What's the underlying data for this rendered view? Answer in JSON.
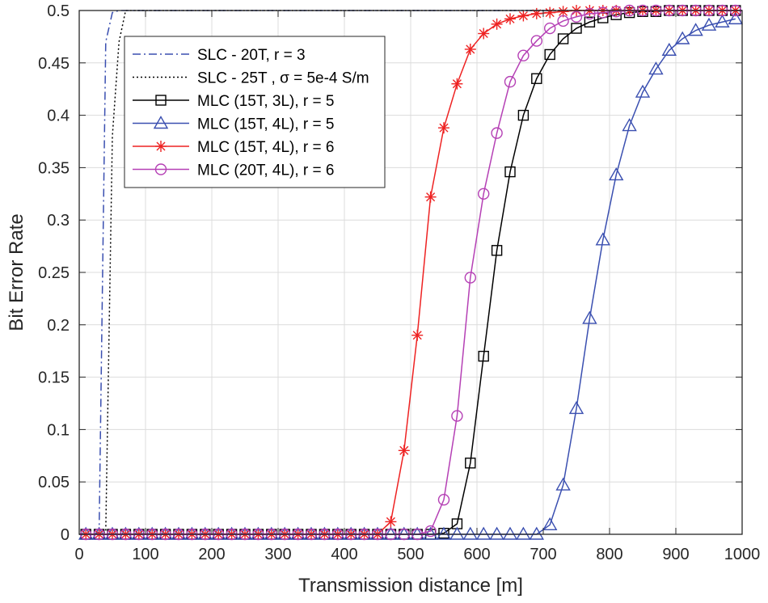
{
  "chart_data": {
    "type": "line",
    "title": "",
    "xlabel": "Transmission  distance [m]",
    "ylabel": "Bit Error Rate",
    "xlim": [
      0,
      1000
    ],
    "ylim": [
      0,
      0.5
    ],
    "xticks": [
      0,
      100,
      200,
      300,
      400,
      500,
      600,
      700,
      800,
      900,
      1000
    ],
    "xtick_labels": [
      "0",
      "100",
      "200",
      "300",
      "400",
      "500",
      "600",
      "700",
      "800",
      "900",
      "1000"
    ],
    "yticks": [
      0,
      0.05,
      0.1,
      0.15,
      0.2,
      0.25,
      0.3,
      0.35,
      0.4,
      0.45,
      0.5
    ],
    "ytick_labels": [
      "0",
      "0.05",
      "0.1",
      "0.15",
      "0.2",
      "0.25",
      "0.3",
      "0.35",
      "0.4",
      "0.45",
      "0.5"
    ],
    "grid": true,
    "legend_position": "top-left",
    "series": [
      {
        "name": "SLC - 20T, r = 3",
        "legend_text": "SLC - 20T, r = 3",
        "color": "#3a4fb0",
        "line": "dashdot",
        "marker": "none",
        "x": [
          0,
          10,
          20,
          30,
          40,
          50,
          60,
          70,
          80,
          100,
          1000
        ],
        "y": [
          0,
          0,
          0,
          0.002,
          0.47,
          0.498,
          0.5,
          0.5,
          0.5,
          0.5,
          0.5
        ]
      },
      {
        "name": "SLC - 25T , σ = 5e-4 S/m",
        "legend_text": "SLC - 25T , σ = 5e-4 S/m",
        "color": "#000000",
        "line": "dotted",
        "marker": "none",
        "x": [
          0,
          10,
          20,
          30,
          40,
          50,
          60,
          70,
          80,
          100,
          1000
        ],
        "y": [
          0,
          0,
          0,
          0.001,
          0.002,
          0.38,
          0.47,
          0.5,
          0.5,
          0.5,
          0.5
        ]
      },
      {
        "name": "MLC (15T, 3L), r = 5",
        "legend_text": "MLC (15T, 3L), r = 5",
        "color": "#000000",
        "line": "solid",
        "marker": "square",
        "x": [
          10,
          30,
          50,
          70,
          90,
          110,
          130,
          150,
          170,
          190,
          210,
          230,
          250,
          270,
          290,
          310,
          330,
          350,
          370,
          390,
          410,
          430,
          450,
          470,
          490,
          510,
          530,
          550,
          570,
          590,
          610,
          630,
          650,
          670,
          690,
          710,
          730,
          750,
          770,
          790,
          810,
          830,
          850,
          870,
          890,
          910,
          930,
          950,
          970,
          990
        ],
        "y": [
          0,
          0,
          0,
          0,
          0,
          0,
          0,
          0,
          0,
          0,
          0,
          0,
          0,
          0,
          0,
          0,
          0,
          0,
          0,
          0,
          0,
          0,
          0,
          0,
          0,
          0,
          0,
          0.001,
          0.01,
          0.068,
          0.17,
          0.271,
          0.346,
          0.4,
          0.435,
          0.458,
          0.473,
          0.483,
          0.489,
          0.493,
          0.496,
          0.498,
          0.499,
          0.499,
          0.5,
          0.5,
          0.5,
          0.5,
          0.5,
          0.5
        ]
      },
      {
        "name": "MLC (15T, 4L), r = 5",
        "legend_text": "MLC (15T, 4L), r = 5",
        "color": "#3a4fb0",
        "line": "solid",
        "marker": "triangle",
        "x": [
          10,
          30,
          50,
          70,
          90,
          110,
          130,
          150,
          170,
          190,
          210,
          230,
          250,
          270,
          290,
          310,
          330,
          350,
          370,
          390,
          410,
          430,
          450,
          470,
          490,
          510,
          530,
          550,
          570,
          590,
          610,
          630,
          650,
          670,
          690,
          710,
          730,
          750,
          770,
          790,
          810,
          830,
          850,
          870,
          890,
          910,
          930,
          950,
          970,
          990
        ],
        "y": [
          0,
          0,
          0,
          0,
          0,
          0,
          0,
          0,
          0,
          0,
          0,
          0,
          0,
          0,
          0,
          0,
          0,
          0,
          0,
          0,
          0,
          0,
          0,
          0,
          0,
          0,
          0,
          0,
          0,
          0,
          0,
          0,
          0,
          0,
          0,
          0.009,
          0.047,
          0.12,
          0.206,
          0.281,
          0.343,
          0.39,
          0.422,
          0.444,
          0.462,
          0.473,
          0.481,
          0.486,
          0.489,
          0.492
        ]
      },
      {
        "name": "MLC (15T, 4L), r = 6",
        "legend_text": "MLC (15T, 4L), r = 6",
        "color": "#ee2222",
        "line": "solid",
        "marker": "asterisk",
        "x": [
          10,
          30,
          50,
          70,
          90,
          110,
          130,
          150,
          170,
          190,
          210,
          230,
          250,
          270,
          290,
          310,
          330,
          350,
          370,
          390,
          410,
          430,
          450,
          470,
          490,
          510,
          530,
          550,
          570,
          590,
          610,
          630,
          650,
          670,
          690,
          710,
          730,
          750,
          770,
          790,
          810,
          830,
          850,
          870,
          890,
          910,
          930,
          950,
          970,
          990
        ],
        "y": [
          0,
          0,
          0,
          0,
          0,
          0,
          0,
          0,
          0,
          0,
          0,
          0,
          0,
          0,
          0,
          0,
          0,
          0,
          0,
          0,
          0,
          0,
          0,
          0.012,
          0.08,
          0.19,
          0.322,
          0.388,
          0.43,
          0.463,
          0.478,
          0.487,
          0.492,
          0.495,
          0.497,
          0.498,
          0.499,
          0.5,
          0.5,
          0.5,
          0.5,
          0.5,
          0.5,
          0.5,
          0.5,
          0.5,
          0.5,
          0.5,
          0.5,
          0.5
        ]
      },
      {
        "name": "MLC (20T, 4L), r = 6",
        "legend_text": "MLC (20T, 4L), r = 6",
        "color": "#b540b5",
        "line": "solid",
        "marker": "circle",
        "x": [
          10,
          30,
          50,
          70,
          90,
          110,
          130,
          150,
          170,
          190,
          210,
          230,
          250,
          270,
          290,
          310,
          330,
          350,
          370,
          390,
          410,
          430,
          450,
          470,
          490,
          510,
          530,
          550,
          570,
          590,
          610,
          630,
          650,
          670,
          690,
          710,
          730,
          750,
          770,
          790,
          810,
          830,
          850,
          870,
          890,
          910,
          930,
          950,
          970,
          990
        ],
        "y": [
          0,
          0,
          0,
          0,
          0,
          0,
          0,
          0,
          0,
          0,
          0,
          0,
          0,
          0,
          0,
          0,
          0,
          0,
          0,
          0,
          0,
          0,
          0,
          0,
          0,
          0,
          0.003,
          0.033,
          0.113,
          0.245,
          0.325,
          0.383,
          0.432,
          0.457,
          0.471,
          0.483,
          0.49,
          0.494,
          0.497,
          0.498,
          0.499,
          0.5,
          0.5,
          0.5,
          0.5,
          0.5,
          0.5,
          0.5,
          0.5,
          0.5
        ]
      }
    ]
  }
}
